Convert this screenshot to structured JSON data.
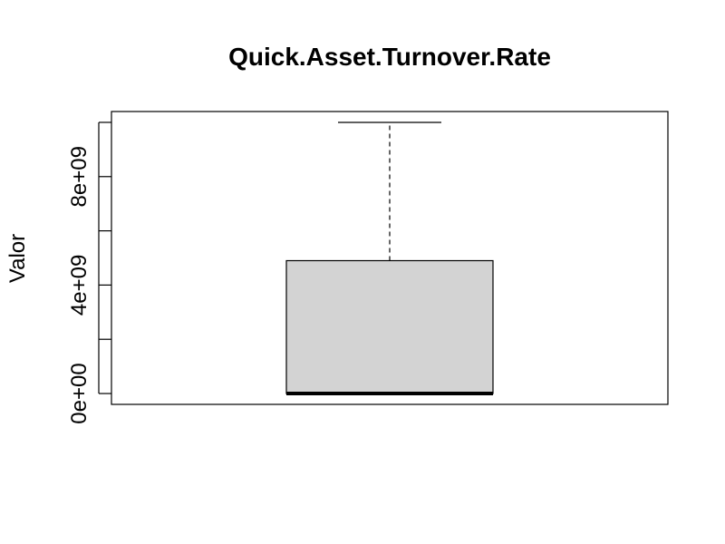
{
  "chart_data": {
    "type": "boxplot",
    "title": "Quick.Asset.Turnover.Rate",
    "ylabel": "Valor",
    "xlabel": "",
    "ylim": [
      -400000000,
      10400000000
    ],
    "yticks": [
      0,
      2000000000,
      4000000000,
      6000000000,
      8000000000,
      10000000000
    ],
    "ytick_labels": [
      "0e+00",
      "",
      "4e+09",
      "",
      "8e+09",
      ""
    ],
    "box": {
      "min": 0,
      "q1": 0,
      "median": 0,
      "q3": 4900000000,
      "max": 10000000000
    },
    "colors": {
      "box_fill": "#d3d3d3",
      "stroke": "#000000"
    }
  }
}
